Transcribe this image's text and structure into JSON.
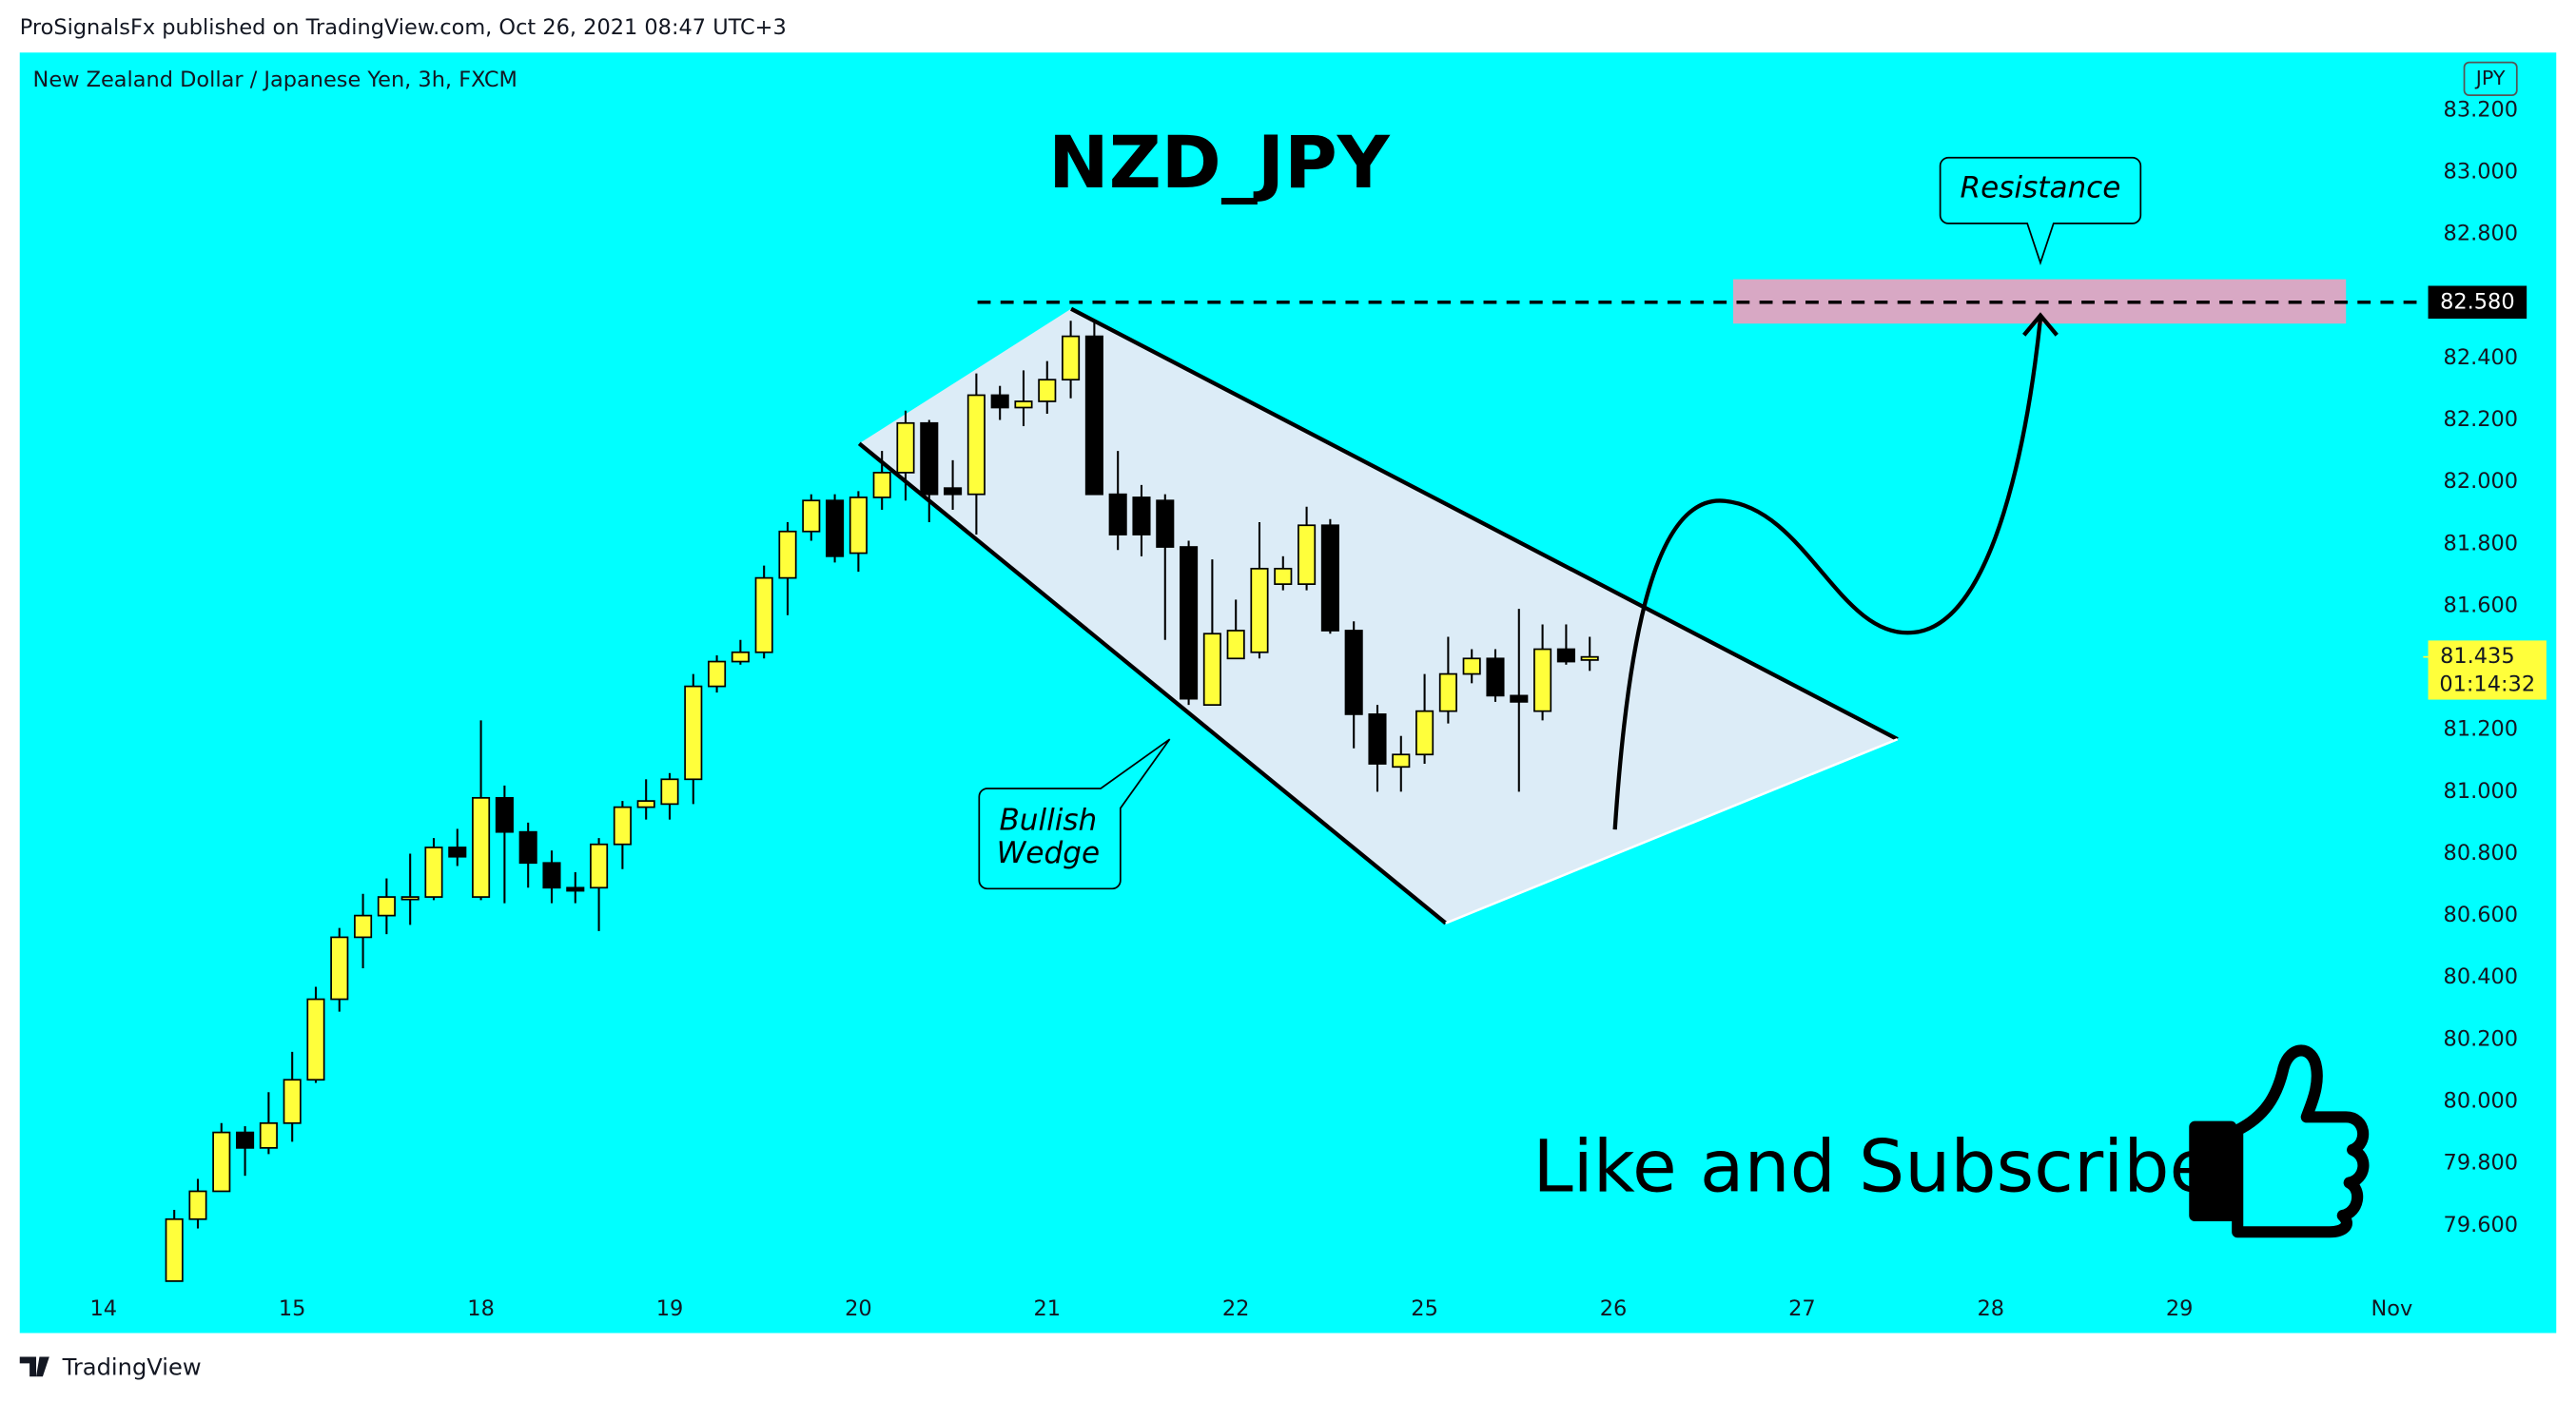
{
  "header": "ProSignalsFx published on TradingView.com, Oct 26, 2021 08:47 UTC+3",
  "footer": "TradingView",
  "chart_data": {
    "type": "candlestick",
    "title": "NZD_JPY",
    "subtitle": "New Zealand Dollar / Japanese Yen, 3h, FXCM",
    "currency": "JPY",
    "up_color": "#ffff3b",
    "down_color": "#000000",
    "background": "#00ffff",
    "grid": false,
    "x": [
      3,
      4,
      5,
      6,
      7,
      8,
      9,
      10,
      11,
      12,
      13,
      14,
      15,
      16,
      17,
      18,
      19,
      20,
      21,
      22,
      23,
      24,
      25,
      26,
      27,
      28,
      29,
      30,
      31,
      32,
      33,
      34,
      35,
      36,
      37,
      38,
      39,
      40,
      41,
      42,
      43,
      44,
      45,
      46,
      47,
      48,
      49,
      50,
      51,
      52,
      53,
      54,
      55,
      56,
      57,
      58,
      59,
      60,
      61,
      62,
      63
    ],
    "open": [
      79.42,
      79.62,
      79.71,
      79.9,
      79.85,
      79.93,
      80.07,
      80.33,
      80.53,
      80.6,
      80.66,
      80.66,
      80.82,
      80.66,
      80.98,
      80.87,
      80.77,
      80.69,
      80.69,
      80.83,
      80.95,
      80.96,
      81.04,
      81.34,
      81.42,
      81.45,
      81.69,
      81.84,
      81.94,
      81.77,
      81.95,
      82.03,
      82.19,
      81.98,
      81.96,
      82.28,
      82.24,
      82.26,
      82.33,
      82.47,
      81.96,
      81.95,
      81.94,
      81.79,
      81.28,
      81.43,
      81.45,
      81.67,
      81.67,
      81.86,
      81.52,
      81.25,
      81.08,
      81.12,
      81.26,
      81.38,
      81.43,
      81.31,
      81.26,
      81.46,
      81.425
    ],
    "high": [
      79.65,
      79.75,
      79.93,
      79.92,
      80.03,
      80.16,
      80.37,
      80.56,
      80.67,
      80.72,
      80.8,
      80.85,
      80.88,
      81.23,
      81.02,
      80.9,
      80.81,
      80.74,
      80.85,
      80.97,
      81.04,
      81.06,
      81.38,
      81.44,
      81.49,
      81.73,
      81.87,
      81.96,
      81.96,
      81.97,
      82.1,
      82.23,
      82.2,
      82.07,
      82.35,
      82.31,
      82.36,
      82.39,
      82.52,
      82.52,
      82.1,
      81.99,
      81.96,
      81.81,
      81.75,
      81.62,
      81.87,
      81.76,
      81.92,
      81.88,
      81.55,
      81.28,
      81.18,
      81.38,
      81.5,
      81.46,
      81.46,
      81.59,
      81.54,
      81.54,
      81.5
    ],
    "low": [
      79.42,
      79.59,
      79.71,
      79.76,
      79.83,
      79.87,
      80.06,
      80.29,
      80.43,
      80.54,
      80.57,
      80.65,
      80.76,
      80.65,
      80.64,
      80.69,
      80.64,
      80.64,
      80.55,
      80.75,
      80.91,
      80.91,
      80.96,
      81.32,
      81.41,
      81.43,
      81.57,
      81.81,
      81.74,
      81.71,
      81.91,
      81.94,
      81.87,
      81.91,
      81.83,
      82.2,
      82.18,
      82.22,
      82.27,
      81.96,
      81.78,
      81.76,
      81.49,
      81.28,
      81.28,
      81.43,
      81.43,
      81.65,
      81.65,
      81.51,
      81.14,
      81.0,
      81.0,
      81.09,
      81.22,
      81.35,
      81.29,
      81.0,
      81.23,
      81.41,
      81.39
    ],
    "close": [
      79.62,
      79.71,
      79.9,
      79.85,
      79.93,
      80.07,
      80.33,
      80.53,
      80.6,
      80.66,
      80.66,
      80.82,
      80.79,
      80.98,
      80.87,
      80.77,
      80.69,
      80.68,
      80.83,
      80.95,
      80.97,
      81.04,
      81.34,
      81.42,
      81.45,
      81.69,
      81.84,
      81.94,
      81.76,
      81.95,
      82.03,
      82.19,
      81.96,
      81.96,
      82.28,
      82.24,
      82.26,
      82.33,
      82.47,
      81.96,
      81.83,
      81.83,
      81.79,
      81.3,
      81.51,
      81.52,
      81.72,
      81.72,
      81.86,
      81.52,
      81.25,
      81.09,
      81.12,
      81.26,
      81.38,
      81.43,
      81.31,
      81.29,
      81.46,
      81.42,
      81.435
    ],
    "xlim": [
      -3.55,
      98.33
    ],
    "ylim": [
      79.393,
      83.386
    ],
    "xticks": [
      {
        "value": 0,
        "label": "14"
      },
      {
        "value": 8,
        "label": "15"
      },
      {
        "value": 16,
        "label": "18"
      },
      {
        "value": 24,
        "label": "19"
      },
      {
        "value": 32,
        "label": "20"
      },
      {
        "value": 40,
        "label": "21"
      },
      {
        "value": 48,
        "label": "22"
      },
      {
        "value": 56,
        "label": "25"
      },
      {
        "value": 64,
        "label": "26"
      },
      {
        "value": 72,
        "label": "27"
      },
      {
        "value": 80,
        "label": "28"
      },
      {
        "value": 88,
        "label": "29"
      },
      {
        "value": 97,
        "label": "Nov"
      }
    ],
    "yticks": [
      {
        "value": 79.6,
        "label": "79.600"
      },
      {
        "value": 79.8,
        "label": "79.800"
      },
      {
        "value": 80,
        "label": "80.000"
      },
      {
        "value": 80.2,
        "label": "80.200"
      },
      {
        "value": 80.4,
        "label": "80.400"
      },
      {
        "value": 80.6,
        "label": "80.600"
      },
      {
        "value": 80.8,
        "label": "80.800"
      },
      {
        "value": 81,
        "label": "81.000"
      },
      {
        "value": 81.2,
        "label": "81.200"
      },
      {
        "value": 81.6,
        "label": "81.600"
      },
      {
        "value": 81.8,
        "label": "81.800"
      },
      {
        "value": 82,
        "label": "82.000"
      },
      {
        "value": 82.2,
        "label": "82.200"
      },
      {
        "value": 82.4,
        "label": "82.400"
      },
      {
        "value": 82.8,
        "label": "82.800"
      },
      {
        "value": 83,
        "label": "83.000"
      },
      {
        "value": 83.2,
        "label": "83.200"
      }
    ],
    "price_line": {
      "value": 82.58,
      "label": "82.580"
    },
    "last_price": 81.435,
    "countdown": "01:14:32",
    "resistance_label": "Resistance",
    "wedge_label": [
      "Bullish",
      "Wedge"
    ],
    "cta": "Like and Subscribe"
  }
}
